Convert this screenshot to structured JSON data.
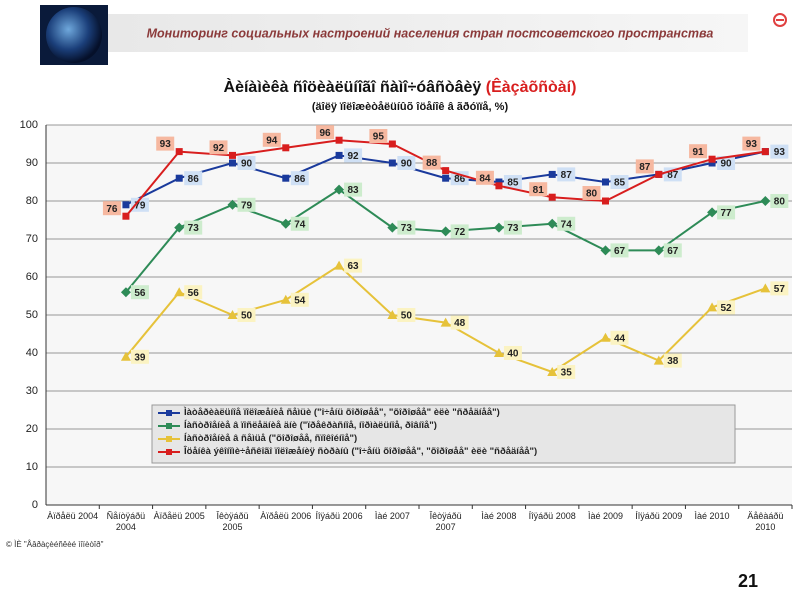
{
  "header": {
    "title": "Мониторинг социальных настроений населения стран постсоветского пространства"
  },
  "page_number": "21",
  "source": "© ÌÈ \"Åâðàçèéñêèé ìîíèòîð\"",
  "chart_data": {
    "type": "line",
    "title": "Àèíàìèêà ñîöèàëüíîãî ñàìî÷óâñòâèÿ",
    "title_country": "(Êàçàõñòàí)",
    "subtitle": "(äîëÿ ïîëîæèòåëüíûõ îöåíîê â ãðóïïå, %)",
    "categories": [
      "Àïðåëü 2004",
      "Ñåíòÿáðü 2004",
      "Àïðåëü 2005",
      "Îêòÿáðü 2005",
      "Àïðåëü 2006",
      "Íîÿáðü 2006",
      "Ìàé 2007",
      "Îêòÿáðü 2007",
      "Ìàé 2008",
      "Íîÿáðü 2008",
      "Ìàé 2009",
      "Íîÿáðü 2009",
      "Ìàé 2010",
      "Äåêàáðü 2010"
    ],
    "series": [
      {
        "name": "Ìàòåðèàëüíîå ïîëîæåíèå ñåìüè (\"î÷åíü õîðîøåå\", \"õîðîøåå\" èëè \"ñðåäíåå\")",
        "color": "#1a3a9c",
        "label_bg": "#cfe0f5",
        "values": [
          null,
          79,
          86,
          90,
          86,
          92,
          90,
          86,
          85,
          87,
          85,
          87,
          90,
          93
        ]
      },
      {
        "name": "Íàñòðîåíèå â ïîñëåäíèå äíè (\"ïðåêðàñíîå, íîðìàëüíîå, ðîâíîå\")",
        "color": "#2e8b57",
        "label_bg": "#cdeccd",
        "values": [
          null,
          56,
          73,
          79,
          74,
          83,
          73,
          72,
          73,
          74,
          67,
          67,
          77,
          80
        ]
      },
      {
        "name": "Íàñòðîåíèå â ñåìüå (\"õîðîøåå, ñïîêîéíîå\")",
        "color": "#e6c23a",
        "label_bg": "#fbf3c2",
        "values": [
          null,
          39,
          56,
          50,
          54,
          63,
          50,
          48,
          40,
          35,
          44,
          38,
          52,
          57
        ]
      },
      {
        "name": "Îöåíêà ýêîíîìè÷åñêîãî ïîëîæåíèÿ ñòðàíû (\"î÷åíü õîðîøåå\", \"õîðîøåå\" èëè \"ñðåäíåå\")",
        "color": "#d81e1e",
        "label_bg": "#f6b8a0",
        "values": [
          null,
          76,
          93,
          92,
          94,
          96,
          95,
          88,
          84,
          81,
          80,
          87,
          91,
          93
        ]
      }
    ],
    "ylim": [
      0,
      100
    ],
    "yticks": [
      0,
      10,
      20,
      30,
      40,
      50,
      60,
      70,
      80,
      90,
      100
    ],
    "grid": true
  }
}
